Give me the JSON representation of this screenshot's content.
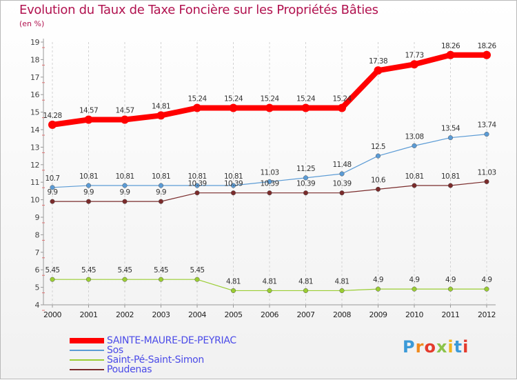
{
  "header": {
    "title": "Evolution du Taux de Taxe Foncière sur les Propriétés Bâties",
    "unit": "(en %)"
  },
  "logo": {
    "text": "Proxiti"
  },
  "chart_data": {
    "type": "line",
    "title": "Evolution du Taux de Taxe Foncière sur les Propriétés Bâties",
    "ylabel": "(en %)",
    "xlabel": "",
    "x": [
      "2000",
      "2001",
      "2002",
      "2003",
      "2004",
      "2005",
      "2006",
      "2007",
      "2008",
      "2009",
      "2010",
      "2011",
      "2012"
    ],
    "ylim": [
      4,
      19
    ],
    "yticks": [
      "4",
      "5",
      "6",
      "7",
      "8",
      "9",
      "10",
      "11",
      "12",
      "13",
      "14",
      "15",
      "16",
      "17",
      "18",
      "19"
    ],
    "grid": "vertical",
    "legend_position": "bottom-left",
    "series": [
      {
        "name": "SAINTE-MAURE-DE-PEYRIAC",
        "color": "#ff0000",
        "values": [
          14.28,
          14.57,
          14.57,
          14.81,
          15.24,
          15.24,
          15.24,
          15.24,
          15.24,
          17.38,
          17.73,
          18.26,
          18.26
        ],
        "labels": [
          "14.28",
          "14.57",
          "14.57",
          "14.81",
          "15.24",
          "15.24",
          "15.24",
          "15.24",
          "15.24",
          "17.38",
          "17.73",
          "18.26",
          "18.26"
        ]
      },
      {
        "name": "Sos",
        "color": "#5b9bd5",
        "values": [
          10.7,
          10.81,
          10.81,
          10.81,
          10.81,
          10.81,
          11.03,
          11.25,
          11.48,
          12.5,
          13.08,
          13.54,
          13.74
        ],
        "labels": [
          "10.7",
          "10.81",
          "10.81",
          "10.81",
          "10.81",
          "10.81",
          "11.03",
          "11.25",
          "11.48",
          "12.5",
          "13.08",
          "13.54",
          "13.74"
        ]
      },
      {
        "name": "Saint-Pé-Saint-Simon",
        "color": "#9acd32",
        "values": [
          5.45,
          5.45,
          5.45,
          5.45,
          5.45,
          4.81,
          4.81,
          4.81,
          4.81,
          4.9,
          4.9,
          4.9,
          4.9
        ],
        "labels": [
          "5.45",
          "5.45",
          "5.45",
          "5.45",
          "5.45",
          "4.81",
          "4.81",
          "4.81",
          "4.81",
          "4.9",
          "4.9",
          "4.9",
          "4.9"
        ]
      },
      {
        "name": "Poudenas",
        "color": "#7a2b2b",
        "values": [
          9.9,
          9.9,
          9.9,
          9.9,
          10.39,
          10.39,
          10.39,
          10.39,
          10.39,
          10.6,
          10.81,
          10.81,
          11.03
        ],
        "labels": [
          "9.9",
          "9.9",
          "9.9",
          "9.9",
          "10.39",
          "10.39",
          "10.39",
          "10.39",
          "10.39",
          "10.6",
          "10.81",
          "10.81",
          "11.03"
        ]
      }
    ]
  }
}
